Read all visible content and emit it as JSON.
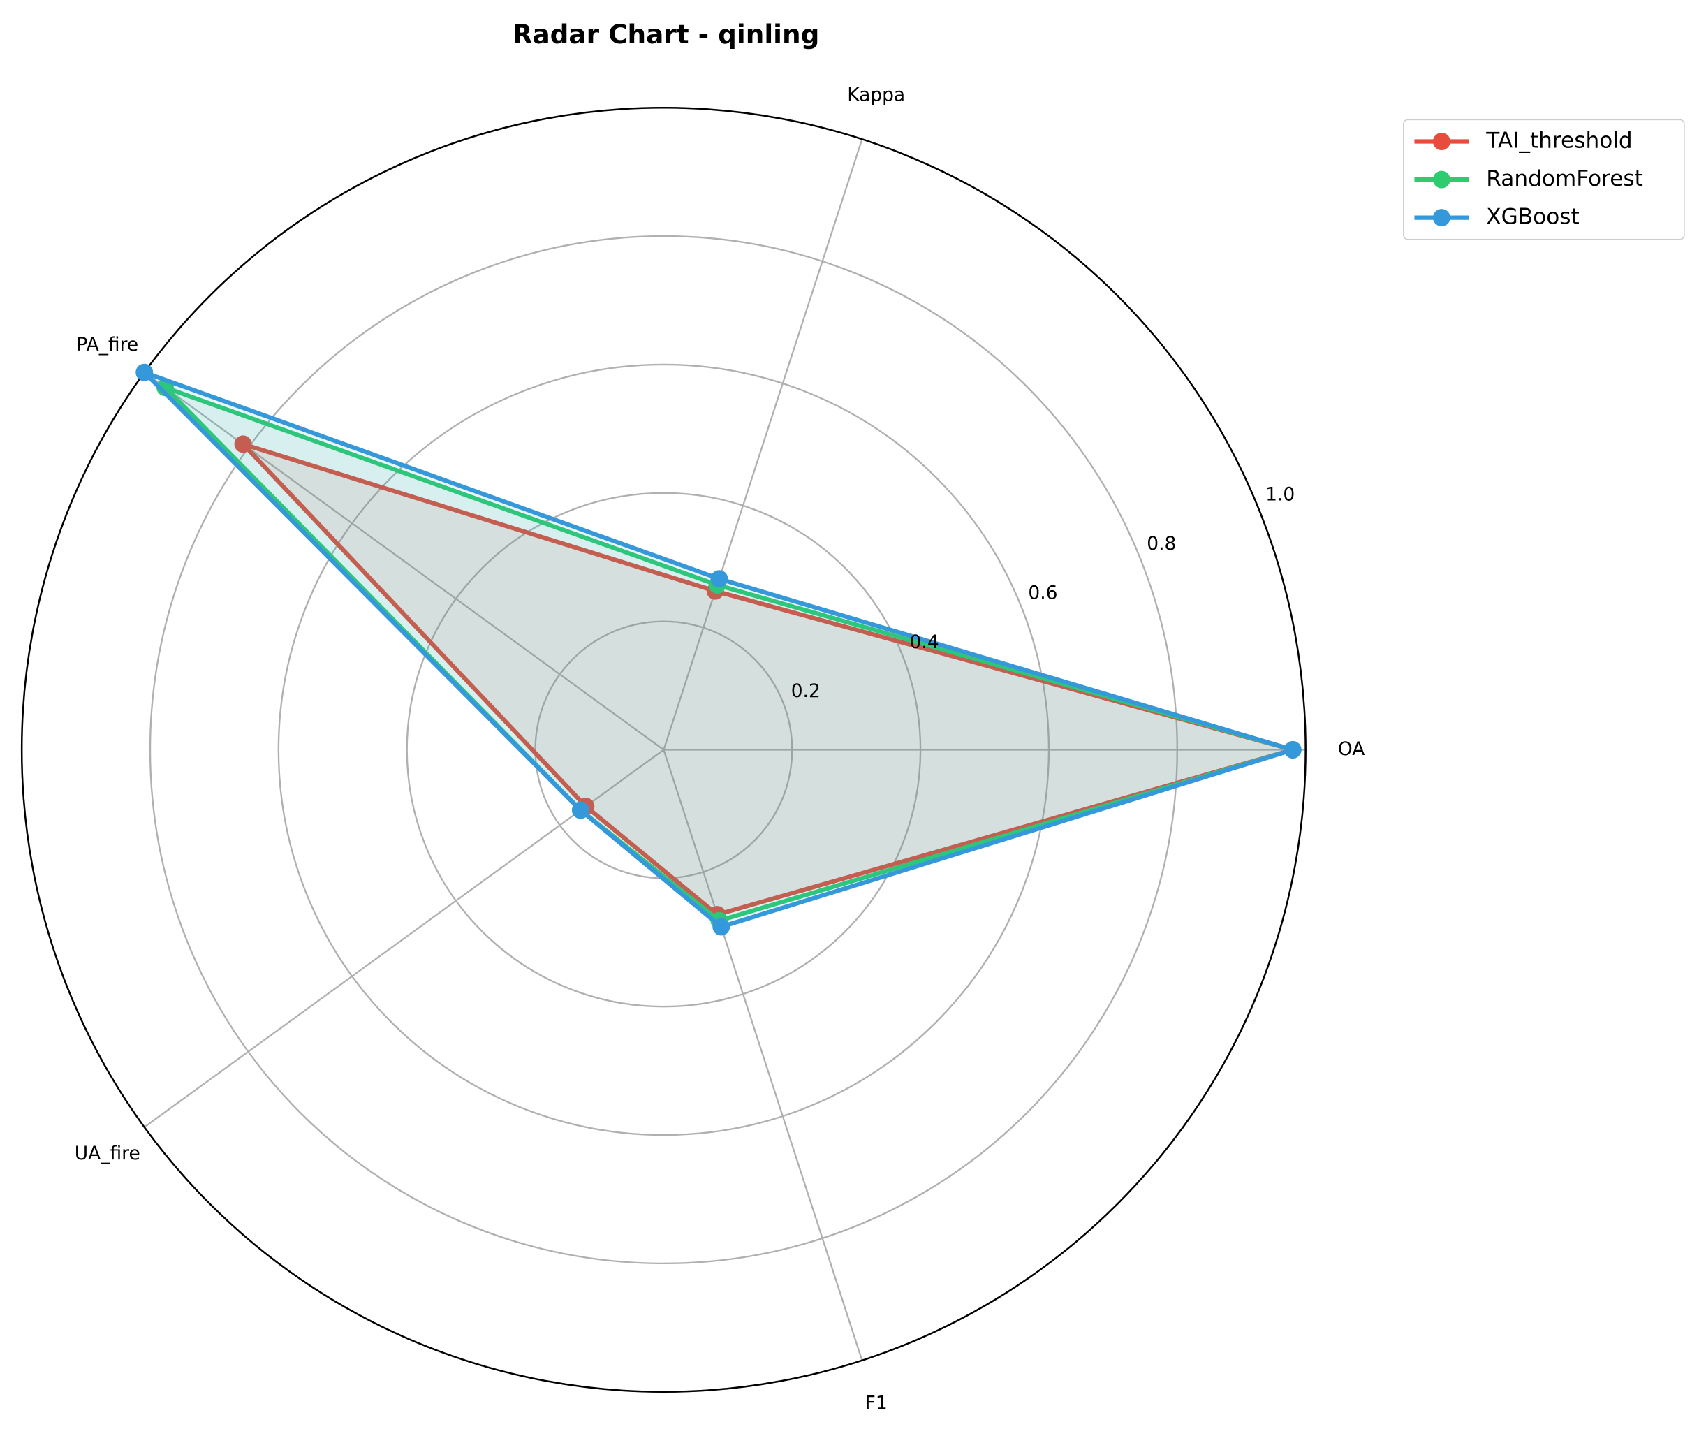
{
  "chart_data": {
    "type": "radar",
    "title": "Radar Chart - qinling",
    "categories": [
      "OA",
      "Kappa",
      "PA_fire",
      "UA_fire",
      "F1"
    ],
    "series": [
      {
        "name": "TAI_threshold",
        "color": "#e74c3c",
        "values": [
          0.98,
          0.26,
          0.81,
          0.15,
          0.27
        ]
      },
      {
        "name": "RandomForest",
        "color": "#2ecc71",
        "values": [
          0.98,
          0.27,
          0.96,
          0.16,
          0.28
        ]
      },
      {
        "name": "XGBoost",
        "color": "#3498db",
        "values": [
          0.98,
          0.28,
          1.0,
          0.16,
          0.29
        ]
      }
    ],
    "rlim": [
      0,
      1
    ],
    "rticks": [
      0.2,
      0.4,
      0.6,
      0.8,
      {
        "value": 1,
        "label": "1.0"
      }
    ],
    "grid": true,
    "legend": "upper right"
  }
}
